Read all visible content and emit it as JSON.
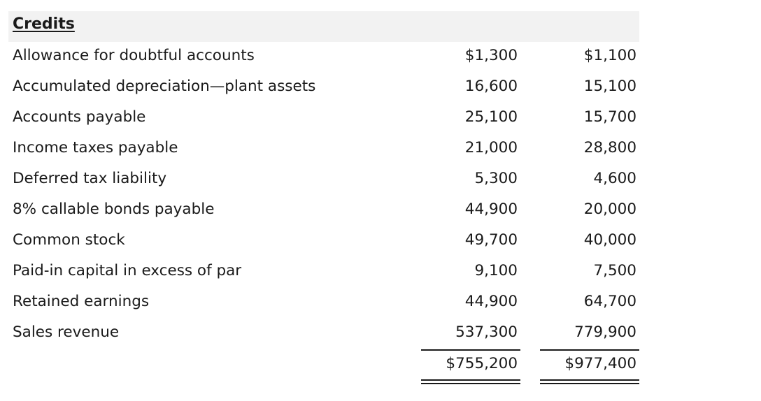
{
  "section": {
    "title": "Credits"
  },
  "rows": [
    {
      "label": "Allowance for doubtful accounts",
      "col1": "$1,300",
      "col2": "$1,100"
    },
    {
      "label": "Accumulated depreciation—plant assets",
      "col1": "16,600",
      "col2": "15,100"
    },
    {
      "label": "Accounts payable",
      "col1": "25,100",
      "col2": "15,700"
    },
    {
      "label": "Income taxes payable",
      "col1": "21,000",
      "col2": "28,800"
    },
    {
      "label": "Deferred tax liability",
      "col1": "5,300",
      "col2": "4,600"
    },
    {
      "label": "8% callable bonds payable",
      "col1": "44,900",
      "col2": "20,000"
    },
    {
      "label": "Common stock",
      "col1": "49,700",
      "col2": "40,000"
    },
    {
      "label": "Paid-in capital in excess of par",
      "col1": "9,100",
      "col2": "7,500"
    },
    {
      "label": "Retained earnings",
      "col1": "44,900",
      "col2": "64,700"
    },
    {
      "label": "Sales revenue",
      "col1": "537,300",
      "col2": "779,900"
    }
  ],
  "totals": {
    "col1": "$755,200",
    "col2": "$977,400"
  }
}
